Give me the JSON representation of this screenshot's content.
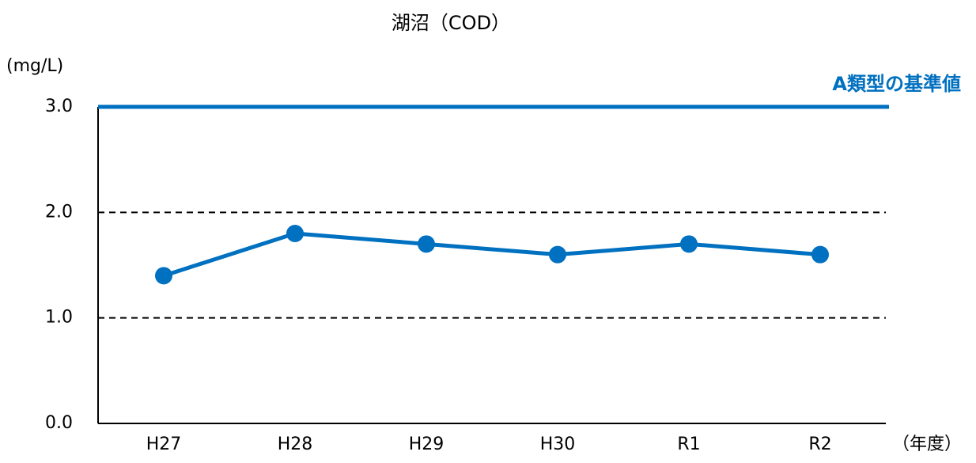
{
  "chart_data": {
    "type": "line",
    "title": "湖沼（COD）",
    "y_label": "(mg/L)",
    "x_label": "（年度）",
    "categories": [
      "H27",
      "H28",
      "H29",
      "H30",
      "R1",
      "R2"
    ],
    "series": [
      {
        "name": "COD",
        "color": "#0070c0",
        "values": [
          1.4,
          1.8,
          1.7,
          1.6,
          1.7,
          1.6
        ]
      }
    ],
    "ylim": [
      0,
      3
    ],
    "yticks": [
      {
        "value": 0,
        "label": "0.0"
      },
      {
        "value": 1,
        "label": "1.0"
      },
      {
        "value": 2,
        "label": "2.0"
      },
      {
        "value": 3,
        "label": "3.0"
      }
    ],
    "grid": true,
    "reference_line": {
      "value": 3,
      "label": "A類型の基準値",
      "color": "#0070c0"
    }
  }
}
